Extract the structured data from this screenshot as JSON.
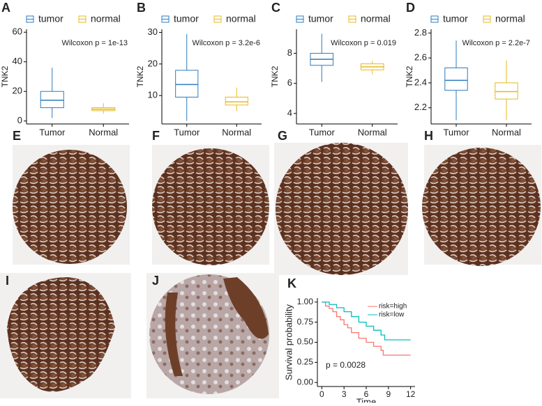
{
  "chart_data": [
    {
      "type": "box",
      "panel_label": "A",
      "ylabel": "TNK2",
      "annotation": "Wilcoxon p = 1e-13",
      "categories": [
        "Tumor",
        "Normal"
      ],
      "ylim": [
        -2,
        62
      ],
      "yticks": [
        0,
        20,
        40,
        60
      ],
      "series": [
        {
          "name": "tumor",
          "color": "#2b7bbf",
          "whisker_low": 2,
          "q1": 9,
          "median": 14,
          "q3": 20,
          "whisker_high": 36
        },
        {
          "name": "normal",
          "color": "#e8b81c",
          "whisker_low": 5,
          "q1": 7,
          "median": 8,
          "q3": 9,
          "whisker_high": 12
        }
      ]
    },
    {
      "type": "box",
      "panel_label": "B",
      "ylabel": "TNK2",
      "annotation": "Wilcoxon p = 3.2e-6",
      "categories": [
        "Tumor",
        "Normal"
      ],
      "ylim": [
        1,
        31
      ],
      "yticks": [
        10,
        20,
        30
      ],
      "series": [
        {
          "name": "tumor",
          "color": "#2b7bbf",
          "whisker_low": 2,
          "q1": 9.5,
          "median": 13.5,
          "q3": 18,
          "whisker_high": 29.5
        },
        {
          "name": "normal",
          "color": "#e8b81c",
          "whisker_low": 5,
          "q1": 7,
          "median": 8,
          "q3": 9.5,
          "whisker_high": 12.5
        }
      ]
    },
    {
      "type": "box",
      "panel_label": "C",
      "ylabel": "TNK2",
      "annotation": "Wilcoxon p = 0.019",
      "categories": [
        "Tumor",
        "Normal"
      ],
      "ylim": [
        3.3,
        9.6
      ],
      "yticks": [
        4,
        6,
        8
      ],
      "series": [
        {
          "name": "tumor",
          "color": "#2b7bbf",
          "whisker_low": 6.1,
          "q1": 7.2,
          "median": 7.6,
          "q3": 8.0,
          "whisker_high": 9.3
        },
        {
          "name": "normal",
          "color": "#e8b81c",
          "whisker_low": 6.6,
          "q1": 6.9,
          "median": 7.1,
          "q3": 7.3,
          "whisker_high": 7.5
        }
      ]
    },
    {
      "type": "box",
      "panel_label": "D",
      "ylabel": "TNK2",
      "annotation": "Wilcoxon p = 2.2e-7",
      "categories": [
        "Tumor",
        "Normal"
      ],
      "ylim": [
        2.07,
        2.83
      ],
      "yticks": [
        2.2,
        2.4,
        2.6,
        2.8
      ],
      "series": [
        {
          "name": "tumor",
          "color": "#2b7bbf",
          "whisker_low": 2.1,
          "q1": 2.34,
          "median": 2.42,
          "q3": 2.52,
          "whisker_high": 2.74
        },
        {
          "name": "normal",
          "color": "#e8b81c",
          "whisker_low": 2.1,
          "q1": 2.27,
          "median": 2.33,
          "q3": 2.4,
          "whisker_high": 2.58
        }
      ]
    },
    {
      "type": "survival",
      "panel_label": "K",
      "xlabel": "Time",
      "ylabel": "Survival probability",
      "annotation": "p = 0.0028",
      "xlim": [
        -0.6,
        12.6
      ],
      "xticks": [
        0,
        3,
        6,
        9,
        12
      ],
      "ylim": [
        -0.05,
        1.05
      ],
      "yticks": [
        {
          "value": 0,
          "label": "0.00"
        },
        {
          "value": 0.25,
          "label": "0.25"
        },
        {
          "value": 0.5,
          "label": "0.50"
        },
        {
          "value": 0.75,
          "label": "0.75"
        },
        {
          "value": 1,
          "label": "1.00"
        }
      ],
      "series": [
        {
          "name": "risk=high",
          "color": "#f8766d",
          "x": [
            0,
            0.5,
            1,
            1.5,
            2,
            2.5,
            3,
            3.5,
            4,
            5,
            6,
            7,
            8,
            8.3,
            12
          ],
          "values": [
            1,
            0.95,
            0.92,
            0.88,
            0.82,
            0.78,
            0.72,
            0.68,
            0.62,
            0.55,
            0.5,
            0.45,
            0.4,
            0.34,
            0.34
          ]
        },
        {
          "name": "risk=low",
          "color": "#00bfc4",
          "x": [
            0,
            1,
            2,
            3,
            4,
            5,
            6,
            7,
            8,
            8.5,
            12
          ],
          "values": [
            1,
            0.97,
            0.93,
            0.88,
            0.82,
            0.75,
            0.7,
            0.65,
            0.59,
            0.53,
            0.53
          ]
        }
      ]
    }
  ],
  "images": [
    {
      "panel_label": "E"
    },
    {
      "panel_label": "F"
    },
    {
      "panel_label": "G"
    },
    {
      "panel_label": "H"
    },
    {
      "panel_label": "I"
    },
    {
      "panel_label": "J"
    }
  ]
}
